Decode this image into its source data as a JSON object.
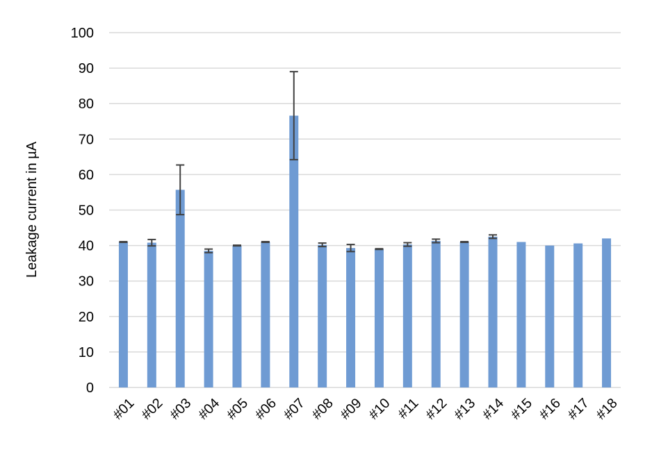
{
  "chart_data": {
    "type": "bar",
    "y_label": "Leakage current in µA",
    "categories": [
      "#01",
      "#02",
      "#03",
      "#04",
      "#05",
      "#06",
      "#07",
      "#08",
      "#09",
      "#10",
      "#11",
      "#12",
      "#13",
      "#14",
      "#15",
      "#16",
      "#17",
      "#18"
    ],
    "values": [
      41,
      40.8,
      55.7,
      38.5,
      40,
      41,
      76.6,
      40.2,
      39.3,
      39,
      40.3,
      41.3,
      41,
      42.5,
      41,
      40,
      40.6,
      42
    ],
    "errors": [
      0.1,
      0.9,
      7,
      0.5,
      0.1,
      0.1,
      12.4,
      0.5,
      1,
      0.1,
      0.5,
      0.5,
      0.1,
      0.5,
      null,
      null,
      null,
      null
    ],
    "color": "#6f9bd3",
    "error_color": "#404040",
    "ylim": [
      0,
      100
    ],
    "yticks": [
      0,
      10,
      20,
      30,
      40,
      50,
      60,
      70,
      80,
      90,
      100
    ],
    "grid": true
  }
}
